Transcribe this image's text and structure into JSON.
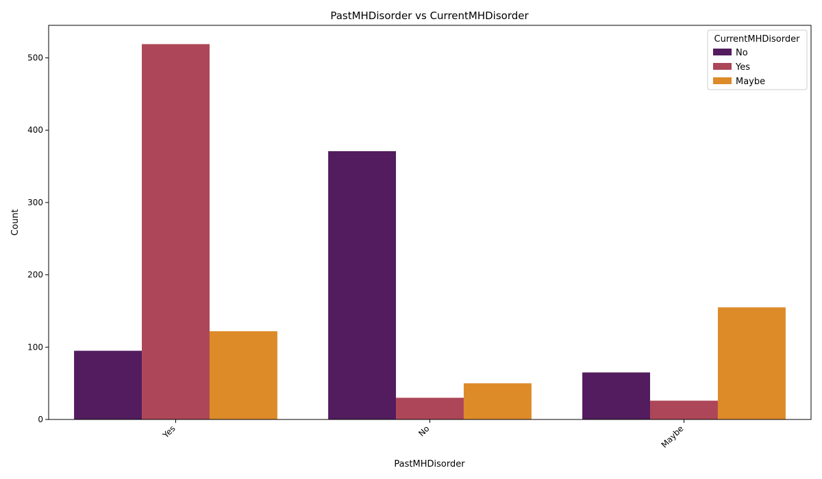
{
  "chart_data": {
    "type": "bar",
    "title": "PastMHDisorder vs CurrentMHDisorder",
    "xlabel": "PastMHDisorder",
    "ylabel": "Count",
    "categories": [
      "Yes",
      "No",
      "Maybe"
    ],
    "series": [
      {
        "name": "No",
        "color": "#521c5e",
        "values": [
          95,
          371,
          65
        ]
      },
      {
        "name": "Yes",
        "color": "#ac4658",
        "values": [
          519,
          30,
          26
        ]
      },
      {
        "name": "Maybe",
        "color": "#dd8b29",
        "values": [
          122,
          50,
          155
        ]
      }
    ],
    "ylim": [
      0,
      545
    ],
    "yticks": [
      0,
      100,
      200,
      300,
      400,
      500
    ],
    "legend": {
      "title": "CurrentMHDisorder",
      "placement": "top-right"
    },
    "grid": false
  }
}
